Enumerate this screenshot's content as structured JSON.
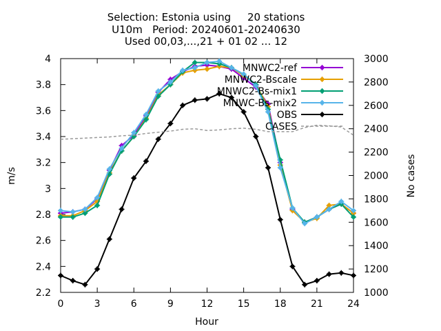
{
  "chart_data": {
    "type": "line",
    "title": [
      "Selection: Estonia using     20 stations",
      "U10m   Period: 20240601-20240630",
      "Used 00,03,...,21 + 01 02 ... 12"
    ],
    "xlabel": "Hour",
    "ylabel": "m/s",
    "y2label": "No cases",
    "xlim": [
      0,
      24
    ],
    "ylim": [
      2.2,
      4.0
    ],
    "y2lim": [
      1000,
      3000
    ],
    "xticks": [
      "0",
      "3",
      "6",
      "9",
      "12",
      "15",
      "18",
      "21",
      "24"
    ],
    "yticks": [
      "2.2",
      "2.4",
      "2.6",
      "2.8",
      "3",
      "3.2",
      "3.4",
      "3.6",
      "3.8",
      "4"
    ],
    "y2ticks": [
      "1000",
      "1200",
      "1400",
      "1600",
      "1800",
      "2000",
      "2200",
      "2400",
      "2600",
      "2800",
      "3000"
    ],
    "legend_position": "top-right",
    "grid": false,
    "x": [
      0,
      1,
      2,
      3,
      4,
      5,
      6,
      7,
      8,
      9,
      10,
      11,
      12,
      13,
      14,
      15,
      16,
      17,
      18,
      19,
      20,
      21,
      22,
      23,
      24
    ],
    "series": [
      {
        "name": "MNWC2-ref",
        "color": "#9400d3",
        "marker": "plus-filled",
        "axis": "y",
        "values": [
          2.81,
          2.82,
          2.84,
          2.92,
          3.14,
          3.33,
          3.41,
          3.56,
          3.74,
          3.84,
          3.9,
          3.94,
          3.95,
          3.94,
          3.92,
          3.85,
          3.78,
          3.65,
          3.2,
          2.84,
          2.74,
          2.78,
          2.84,
          2.88,
          2.81
        ]
      },
      {
        "name": "MNWC2-Bscale",
        "color": "#e69f00",
        "marker": "plus-filled",
        "axis": "y",
        "values": [
          2.79,
          2.79,
          2.83,
          2.9,
          3.12,
          3.29,
          3.4,
          3.54,
          3.72,
          3.8,
          3.89,
          3.91,
          3.92,
          3.94,
          3.93,
          3.87,
          3.8,
          3.63,
          3.18,
          2.83,
          2.74,
          2.77,
          2.87,
          2.88,
          2.81
        ]
      },
      {
        "name": "MNWC2-Bs-mix1",
        "color": "#009e73",
        "marker": "plus-filled",
        "axis": "y",
        "values": [
          2.78,
          2.78,
          2.81,
          2.87,
          3.11,
          3.29,
          3.4,
          3.53,
          3.71,
          3.8,
          3.9,
          3.97,
          3.97,
          3.96,
          3.93,
          3.88,
          3.8,
          3.61,
          3.22,
          2.85,
          2.74,
          2.78,
          2.84,
          2.88,
          2.78
        ]
      },
      {
        "name": "MNWC-Bs-mix2",
        "color": "#56b4e9",
        "marker": "plus-filled",
        "axis": "y",
        "values": [
          2.83,
          2.82,
          2.84,
          2.93,
          3.15,
          3.31,
          3.43,
          3.57,
          3.75,
          3.82,
          3.91,
          3.93,
          3.97,
          3.98,
          3.93,
          3.88,
          3.79,
          3.59,
          3.16,
          2.85,
          2.73,
          2.78,
          2.84,
          2.9,
          2.83
        ]
      },
      {
        "name": "OBS",
        "color": "#000000",
        "marker": "plus-filled",
        "axis": "y",
        "values": [
          2.33,
          2.29,
          2.26,
          2.38,
          2.61,
          2.84,
          3.08,
          3.21,
          3.38,
          3.5,
          3.64,
          3.68,
          3.69,
          3.73,
          3.7,
          3.59,
          3.4,
          3.16,
          2.76,
          2.4,
          2.26,
          2.29,
          2.34,
          2.35,
          2.33
        ]
      },
      {
        "name": "CASES",
        "color": "#999999",
        "marker": "none",
        "dash": true,
        "axis": "y2",
        "values": [
          2310,
          2315,
          2320,
          2325,
          2330,
          2340,
          2345,
          2360,
          2370,
          2380,
          2395,
          2400,
          2385,
          2390,
          2400,
          2405,
          2395,
          2375,
          2375,
          2375,
          2410,
          2430,
          2425,
          2415,
          2345
        ]
      }
    ]
  }
}
